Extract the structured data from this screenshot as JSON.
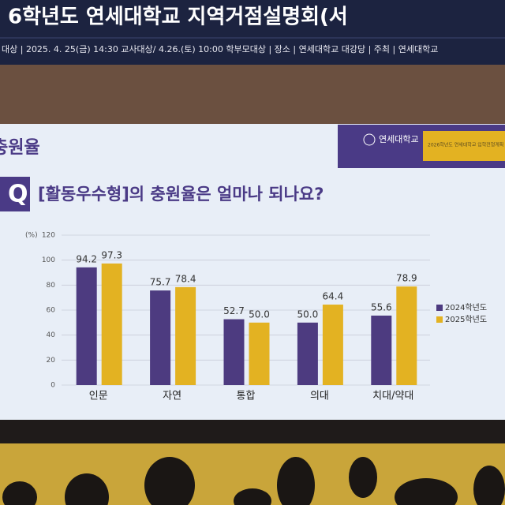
{
  "banner": {
    "title": "6학년도 연세대학교 지역거점설명회(서",
    "info": "대상 | 2025. 4. 25(금) 14:30 교사대상/ 4.26.(토) 10:00 학부모대상 | 장소 | 연세대학교 대강당 | 주최 | 연세대학교"
  },
  "slide": {
    "section": "충원율",
    "logo": "연세대학교",
    "badge": "2026학년도 연세대학교 입학전형계획 안내",
    "q_mark": "Q"
  },
  "chart_data": {
    "type": "bar",
    "title": "[활동우수형]의 충원율은 얼마나 되나요?",
    "y_label": "(%)",
    "categories": [
      "인문",
      "자연",
      "통합",
      "의대",
      "치대/약대"
    ],
    "series": [
      {
        "name": "2024학년도",
        "color": "#4d3b80",
        "values": [
          94.2,
          75.7,
          52.7,
          50.0,
          55.6
        ],
        "value_labels": [
          "94.2",
          "75.7",
          "52.7",
          "50.0",
          "55.6"
        ]
      },
      {
        "name": "2025학년도",
        "color": "#e3b222",
        "values": [
          97.3,
          78.4,
          50.0,
          64.4,
          78.9
        ],
        "value_labels": [
          "97.3",
          "78.4",
          "50.0",
          "64.4",
          "78.9"
        ]
      }
    ],
    "ylim": [
      0,
      120
    ],
    "yticks": [
      0,
      20,
      40,
      60,
      80,
      100,
      120
    ],
    "grid": true,
    "legend": "right"
  }
}
